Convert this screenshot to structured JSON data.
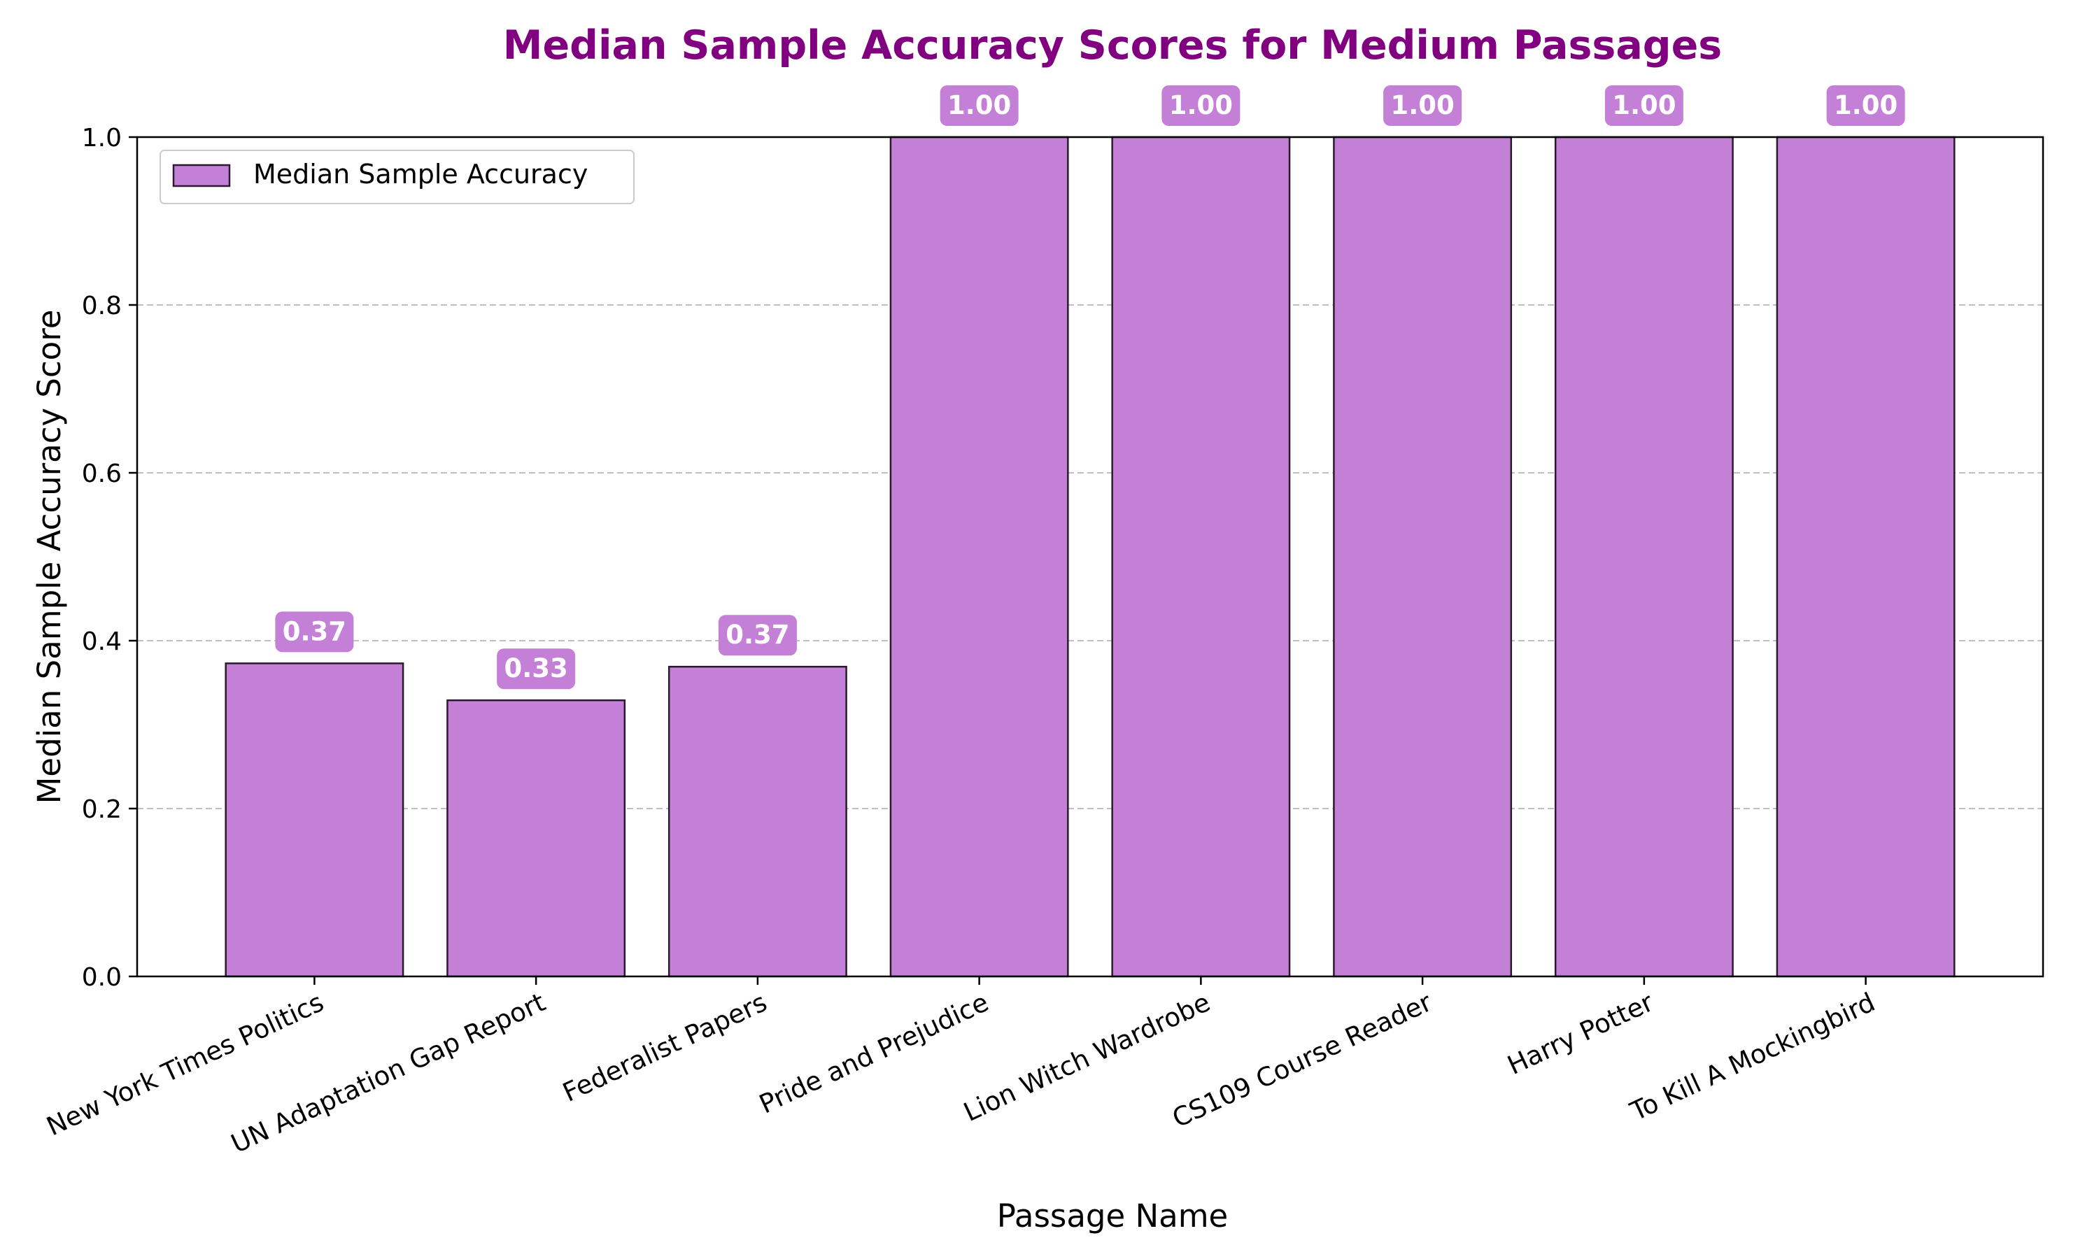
{
  "chart_data": {
    "type": "bar",
    "title": "Median Sample Accuracy Scores for Medium Passages",
    "xlabel": "Passage Name",
    "ylabel": "Median Sample Accuracy Score",
    "categories": [
      "New York Times Politics",
      "UN Adaptation Gap Report",
      "Federalist Papers",
      "Pride and Prejudice",
      "Lion Witch Wardrobe",
      "CS109 Course Reader",
      "Harry Potter",
      "To Kill A Mockingbird"
    ],
    "series": [
      {
        "name": "Median Sample Accuracy",
        "values": [
          0.373,
          0.329,
          0.369,
          1.0,
          1.0,
          1.0,
          1.0,
          1.0
        ],
        "labels": [
          "0.37",
          "0.33",
          "0.37",
          "1.00",
          "1.00",
          "1.00",
          "1.00",
          "1.00"
        ]
      }
    ],
    "ylim": [
      0,
      1.0
    ],
    "yticks": [
      "0.0",
      "0.2",
      "0.4",
      "0.6",
      "0.8",
      "1.0"
    ],
    "ytick_values": [
      0,
      0.2,
      0.4,
      0.6,
      0.8,
      1.0
    ],
    "grid": "y-dashed",
    "legend_position": "upper-left",
    "colors": {
      "bar_fill": "#c380d6",
      "bar_edge": "#2b1a2e",
      "title": "#800080",
      "grid": "#bfbfbf",
      "label_box": "#c380d6"
    }
  }
}
